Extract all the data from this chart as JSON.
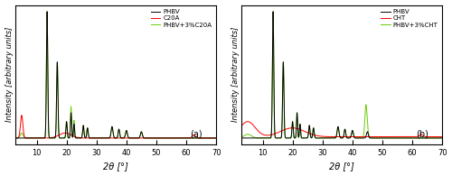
{
  "panel_a": {
    "label": "(a)",
    "xlabel": "2θ [°]",
    "ylabel": "Intensity [arbitrary units]",
    "xlim": [
      3,
      70
    ],
    "ylim": [
      -0.02,
      1.05
    ],
    "legend": [
      "PHBV",
      "C20A",
      "PHBV+3%C20A"
    ],
    "colors": [
      "black",
      "red",
      "#66cc00"
    ],
    "xticks": [
      10,
      20,
      30,
      40,
      50,
      60,
      70
    ]
  },
  "panel_b": {
    "label": "(b)",
    "xlabel": "2θ [°]",
    "ylabel": "Intensity [arbitrary units]",
    "xlim": [
      3,
      70
    ],
    "ylim": [
      -0.02,
      1.05
    ],
    "legend": [
      "PHBV",
      "CHT",
      "PHBV+3%CHT"
    ],
    "colors": [
      "black",
      "red",
      "#66cc00"
    ],
    "xticks": [
      10,
      20,
      30,
      40,
      50,
      60,
      70
    ]
  },
  "fig_bg": "white",
  "axes_bg": "white"
}
